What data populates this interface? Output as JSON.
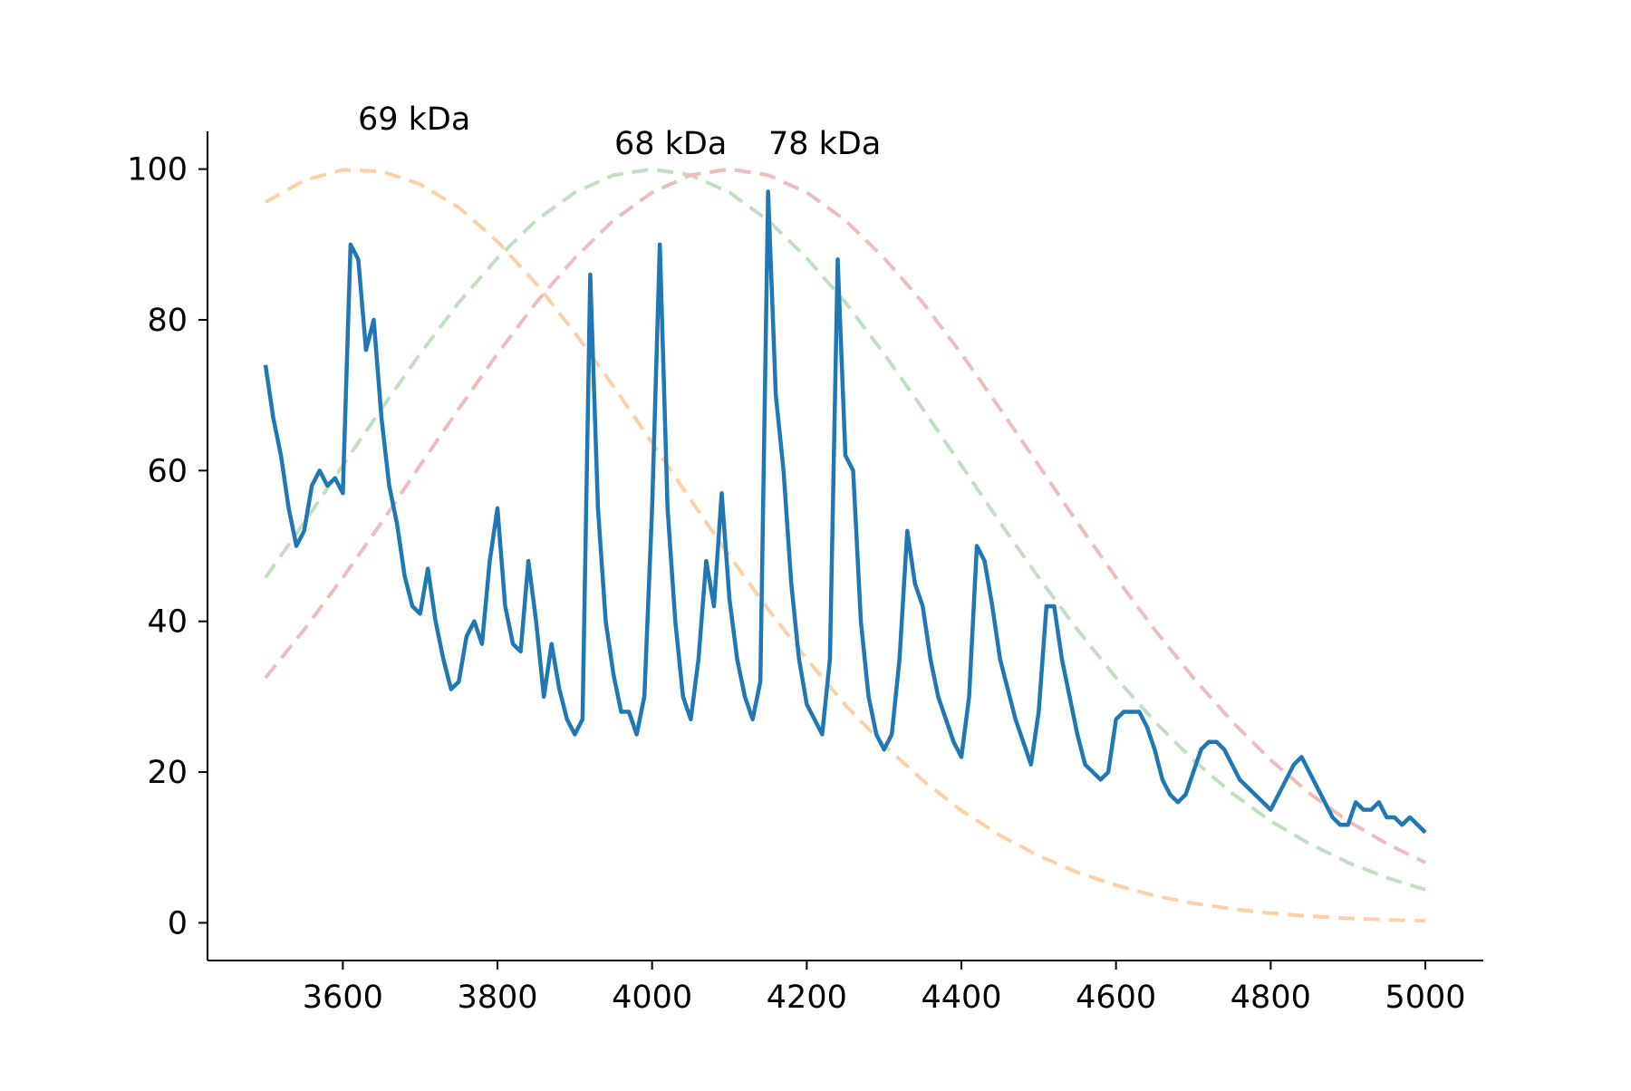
{
  "chart_data": {
    "type": "line",
    "annotations": [
      "69 kDa",
      "68 kDa",
      "78 kDa"
    ],
    "xlim": [
      3425,
      5075
    ],
    "ylim": [
      -5,
      105
    ],
    "xticks": [
      3600,
      3800,
      4000,
      4200,
      4400,
      4600,
      4800,
      5000
    ],
    "yticks": [
      0,
      20,
      40,
      60,
      80,
      100
    ],
    "grid": false,
    "series": [
      {
        "color": "#ffd0a6",
        "style": "dashed",
        "x": [
          3500,
          3550,
          3600,
          3650,
          3700,
          3750,
          3800,
          3850,
          3900,
          3950,
          4000,
          4050,
          4100,
          4150,
          4200,
          4250,
          4300,
          4350,
          4400,
          4450,
          4500,
          4550,
          4600,
          4650,
          4700,
          4750,
          4800,
          4850,
          4900,
          4950,
          5000
        ],
        "values": [
          95.6,
          98.5,
          99.9,
          99.7,
          98.0,
          94.9,
          90.4,
          84.8,
          78.3,
          71.2,
          63.7,
          56.1,
          48.7,
          41.6,
          35.0,
          28.9,
          23.6,
          18.9,
          14.9,
          11.6,
          8.9,
          6.7,
          5.0,
          3.6,
          2.6,
          1.85,
          1.29,
          0.88,
          0.6,
          0.4,
          0.26
        ]
      },
      {
        "color": "#bfe0bf",
        "style": "dashed",
        "x": [
          3500,
          3550,
          3600,
          3650,
          3700,
          3750,
          3800,
          3850,
          3900,
          3950,
          4000,
          4050,
          4100,
          4150,
          4200,
          4250,
          4300,
          4350,
          4400,
          4450,
          4500,
          4550,
          4600,
          4650,
          4700,
          4750,
          4800,
          4850,
          4900,
          4950,
          5000
        ],
        "values": [
          45.8,
          53.1,
          60.7,
          68.2,
          75.5,
          82.3,
          88.2,
          93.2,
          96.9,
          99.2,
          100,
          99.2,
          96.9,
          93.2,
          88.2,
          82.3,
          75.5,
          68.2,
          60.7,
          53.1,
          45.8,
          38.9,
          32.5,
          26.7,
          21.6,
          17.2,
          13.5,
          10.5,
          8.0,
          6.0,
          4.4
        ]
      },
      {
        "color": "#efbcbc",
        "style": "dashed",
        "x": [
          3500,
          3550,
          3600,
          3650,
          3700,
          3750,
          3800,
          3850,
          3900,
          3950,
          4000,
          4050,
          4100,
          4150,
          4200,
          4250,
          4300,
          4350,
          4400,
          4450,
          4500,
          4550,
          4600,
          4650,
          4700,
          4750,
          4800,
          4850,
          4900,
          4950,
          5000
        ],
        "values": [
          32.5,
          38.9,
          45.8,
          53.1,
          60.7,
          68.2,
          75.5,
          82.3,
          88.2,
          93.2,
          96.9,
          99.2,
          100,
          99.2,
          96.9,
          93.2,
          88.2,
          82.3,
          75.5,
          68.2,
          60.7,
          53.1,
          45.8,
          38.9,
          32.5,
          26.7,
          21.6,
          17.2,
          13.5,
          10.5,
          8.0
        ]
      },
      {
        "color": "#1f77b4",
        "style": "solid",
        "x": [
          3500,
          3510,
          3520,
          3530,
          3540,
          3550,
          3560,
          3570,
          3580,
          3590,
          3600,
          3610,
          3620,
          3630,
          3640,
          3650,
          3660,
          3670,
          3680,
          3690,
          3700,
          3710,
          3720,
          3730,
          3740,
          3750,
          3760,
          3770,
          3780,
          3790,
          3800,
          3810,
          3820,
          3830,
          3840,
          3850,
          3860,
          3870,
          3880,
          3890,
          3900,
          3910,
          3920,
          3930,
          3940,
          3950,
          3960,
          3970,
          3980,
          3990,
          4000,
          4010,
          4020,
          4030,
          4040,
          4050,
          4060,
          4070,
          4080,
          4090,
          4100,
          4110,
          4120,
          4130,
          4140,
          4150,
          4160,
          4170,
          4180,
          4190,
          4200,
          4210,
          4220,
          4230,
          4240,
          4250,
          4260,
          4270,
          4280,
          4290,
          4300,
          4310,
          4320,
          4330,
          4340,
          4350,
          4360,
          4370,
          4380,
          4390,
          4400,
          4410,
          4420,
          4430,
          4440,
          4450,
          4460,
          4470,
          4480,
          4490,
          4500,
          4510,
          4520,
          4530,
          4540,
          4550,
          4560,
          4570,
          4580,
          4590,
          4600,
          4610,
          4620,
          4630,
          4640,
          4650,
          4660,
          4670,
          4680,
          4690,
          4700,
          4710,
          4720,
          4730,
          4740,
          4750,
          4760,
          4770,
          4780,
          4790,
          4800,
          4810,
          4820,
          4830,
          4840,
          4850,
          4860,
          4870,
          4880,
          4890,
          4900,
          4910,
          4920,
          4930,
          4940,
          4950,
          4960,
          4970,
          4980,
          4990,
          5000
        ],
        "values": [
          74,
          67,
          62,
          55,
          50,
          52,
          58,
          60,
          58,
          59,
          57,
          90,
          88,
          76,
          80,
          67,
          58,
          53,
          46,
          42,
          41,
          47,
          40,
          35,
          31,
          32,
          38,
          40,
          37,
          48,
          55,
          42,
          37,
          36,
          48,
          40,
          30,
          37,
          31,
          27,
          25,
          27,
          86,
          55,
          40,
          33,
          28,
          28,
          25,
          30,
          55,
          90,
          55,
          40,
          30,
          27,
          35,
          48,
          42,
          57,
          43,
          35,
          30,
          27,
          32,
          97,
          70,
          60,
          45,
          35,
          29,
          27,
          25,
          35,
          88,
          62,
          60,
          40,
          30,
          25,
          23,
          25,
          35,
          52,
          45,
          42,
          35,
          30,
          27,
          24,
          22,
          30,
          50,
          48,
          42,
          35,
          31,
          27,
          24,
          21,
          28,
          42,
          42,
          35,
          30,
          25,
          21,
          20,
          19,
          20,
          27,
          28,
          28,
          28,
          26,
          23,
          19,
          17,
          16,
          17,
          20,
          23,
          24,
          24,
          23,
          21,
          19,
          18,
          17,
          16,
          15,
          17,
          19,
          21,
          22,
          20,
          18,
          16,
          14,
          13,
          13,
          16,
          15,
          15,
          16,
          14,
          14,
          13,
          14,
          13,
          12
        ]
      }
    ]
  }
}
